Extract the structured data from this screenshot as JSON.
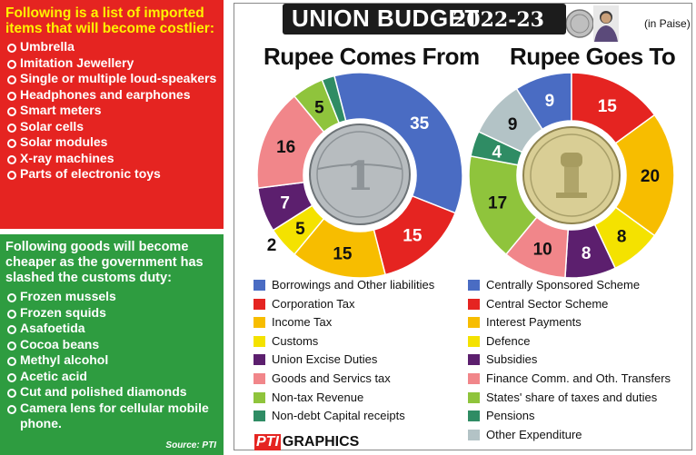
{
  "costlier_panel": {
    "heading": "Following is a list of imported items that will become costlier:",
    "items": [
      "Umbrella",
      "Imitation Jewellery",
      "Single or multiple loud-speakers",
      "Headphones and earphones",
      "Smart meters",
      "Solar cells",
      "Solar modules",
      "X-ray machines",
      "Parts of electronic toys"
    ]
  },
  "cheaper_panel": {
    "heading": "Following goods will become cheaper as the government has slashed the customs duty:",
    "items": [
      "Frozen mussels",
      "Frozen squids",
      "Asafoetida",
      "Cocoa beans",
      "Methyl alcohol",
      "Acetic acid",
      "Cut and polished diamonds",
      "Camera lens for cellular mobile phone."
    ],
    "source": "Source: PTI"
  },
  "banner": {
    "title": "UNION BUDGET",
    "year": "2022-23",
    "unit": "(in Paise)"
  },
  "credit": {
    "mark": "PTI",
    "text": "GRAPHICS"
  },
  "colors": {
    "red_panel": "#e52421",
    "green_panel": "#2e9c40",
    "blue": "#4a6cc3",
    "red": "#e52421",
    "orange": "#f7bd00",
    "yellow": "#f4e200",
    "purple": "#5c1f6e",
    "pink": "#f1868a",
    "lime": "#8fc43c",
    "teal": "#2f8c64",
    "grey": "#b3c3c6"
  },
  "chart_data": [
    {
      "type": "pie",
      "title": "Rupee Comes From",
      "categories": [
        "Borrowings and Other liabilities",
        "Corporation Tax",
        "Income Tax",
        "Customs",
        "Union Excise Duties",
        "Goods and Servics tax",
        "Non-tax Revenue",
        "Non-debt Capital receipts"
      ],
      "values": [
        35,
        15,
        15,
        5,
        7,
        16,
        5,
        2
      ],
      "colors": [
        "#4a6cc3",
        "#e52421",
        "#f7bd00",
        "#f4e200",
        "#5c1f6e",
        "#f1868a",
        "#8fc43c",
        "#2f8c64"
      ],
      "unit": "(in Paise)"
    },
    {
      "type": "pie",
      "title": "Rupee Goes To",
      "categories": [
        "Centrally Sponsored Scheme",
        "Central Sector Scheme",
        "Interest Payments",
        "Defence",
        "Subsidies",
        "Finance Comm. and Oth. Transfers",
        "States' share of taxes and duties",
        "Pensions",
        "Other Expenditure"
      ],
      "values": [
        9,
        15,
        20,
        8,
        8,
        10,
        17,
        4,
        9
      ],
      "colors": [
        "#4a6cc3",
        "#e52421",
        "#f7bd00",
        "#f4e200",
        "#5c1f6e",
        "#f1868a",
        "#8fc43c",
        "#2f8c64",
        "#b3c3c6"
      ],
      "unit": "(in Paise)"
    }
  ]
}
